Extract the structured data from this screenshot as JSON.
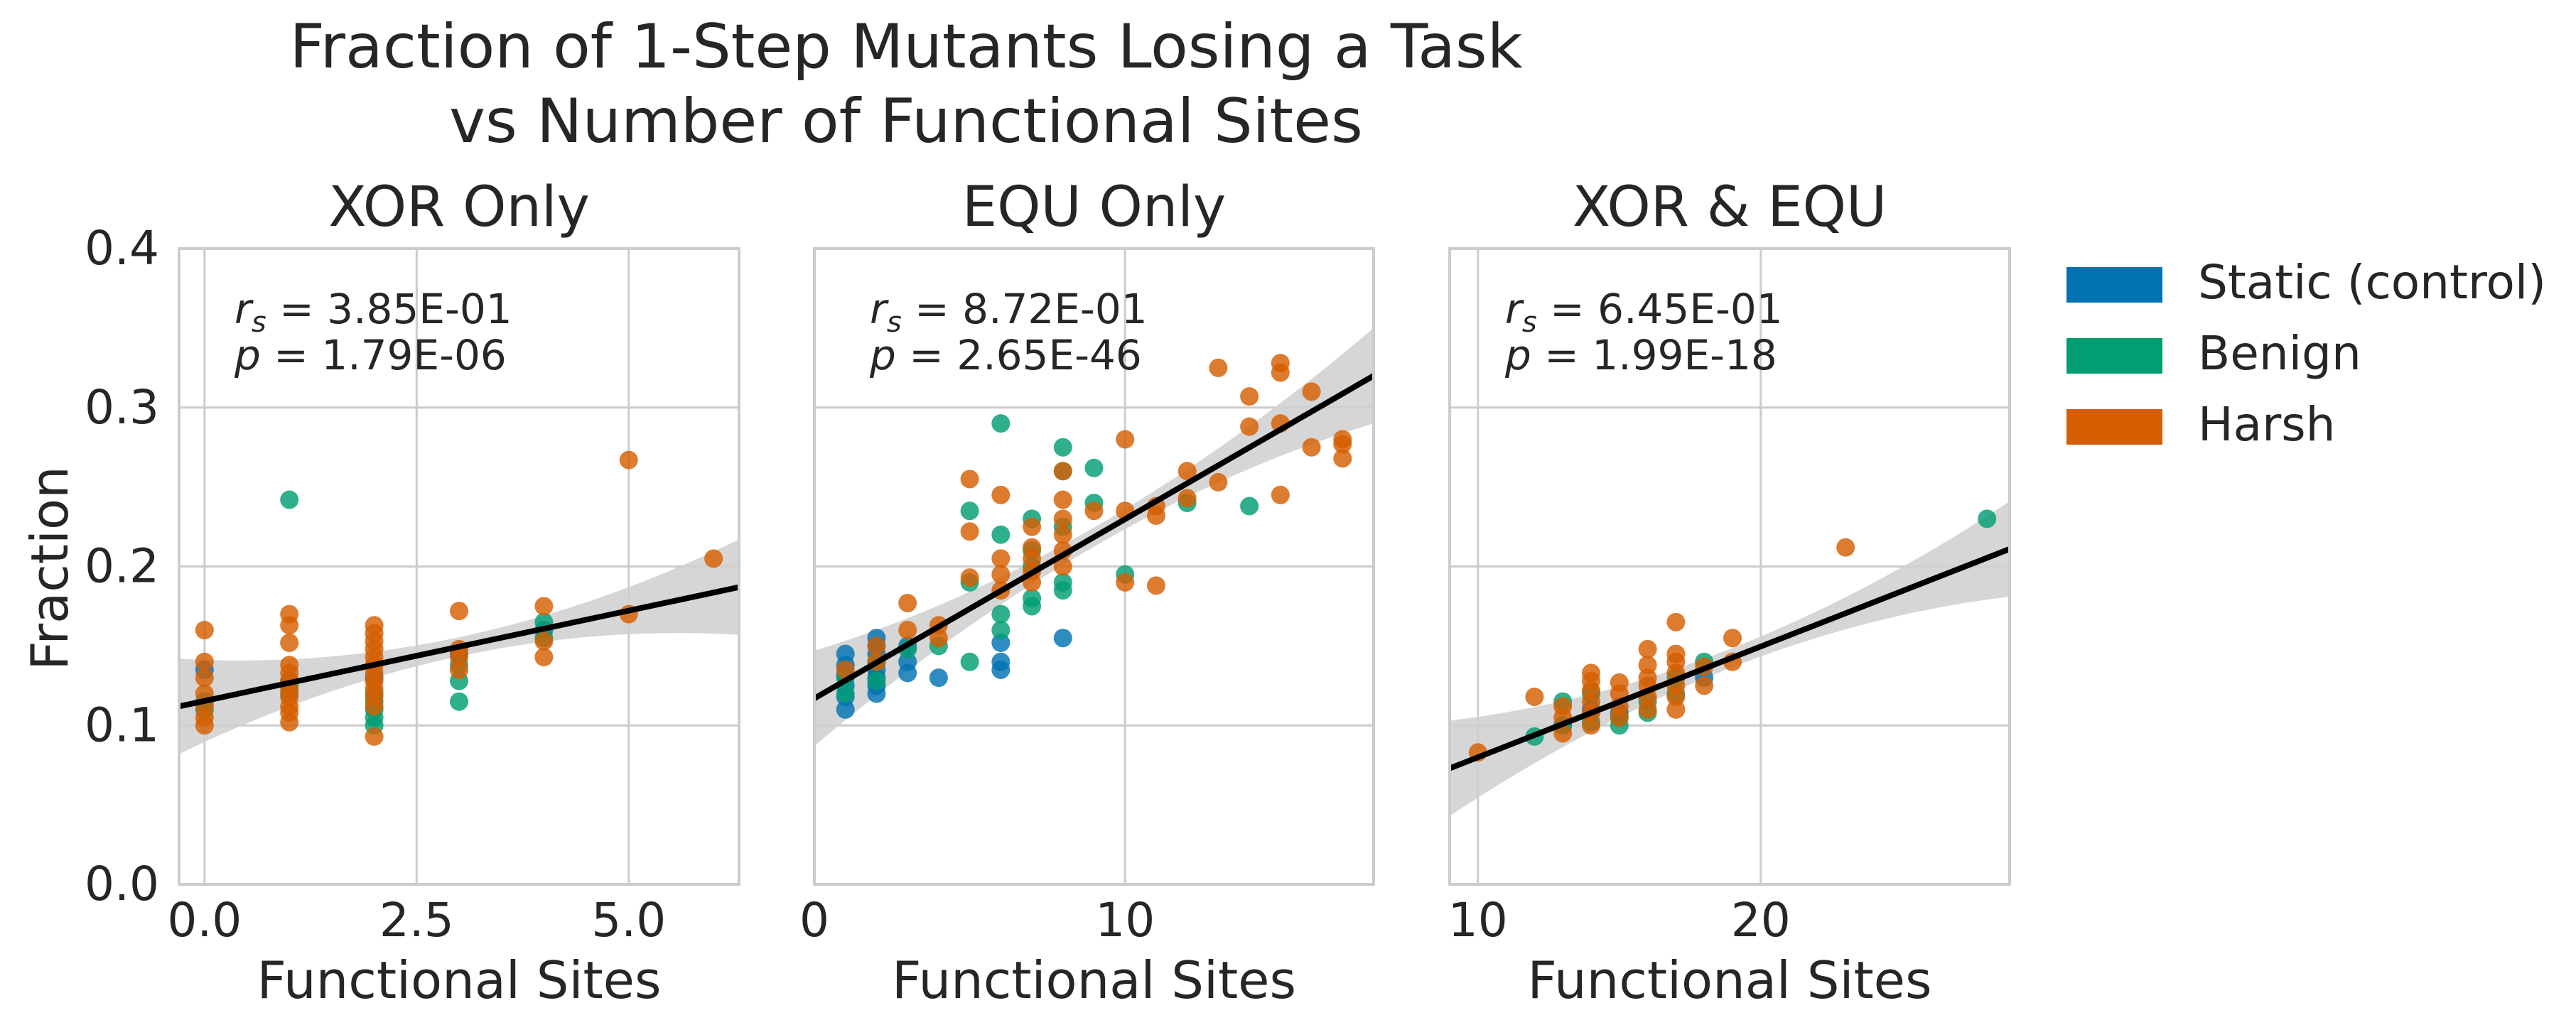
{
  "figure": {
    "title_line1": "Fraction of 1-Step Mutants Losing a Task",
    "title_line2": "vs Number of Functional Sites",
    "ylabel": "Fraction"
  },
  "legend": {
    "placement": "right, outside",
    "entries": [
      {
        "label": "Static (control)",
        "color": "#0173b2"
      },
      {
        "label": "Benign",
        "color": "#029e73"
      },
      {
        "label": "Harsh",
        "color": "#d55e00"
      }
    ]
  },
  "chart_data": [
    {
      "type": "scatter",
      "title": "XOR Only",
      "xlabel": "Functional Sites",
      "ylabel": "Fraction",
      "xlim": [
        -0.3,
        6.3
      ],
      "ylim": [
        0,
        0.4
      ],
      "xticks": [
        0.0,
        2.5,
        5.0
      ],
      "xtick_labels": [
        "0.0",
        "2.5",
        "5.0"
      ],
      "yticks": [
        0.0,
        0.1,
        0.2,
        0.3,
        0.4
      ],
      "ytick_labels": [
        "0.0",
        "0.1",
        "0.2",
        "0.3",
        "0.4"
      ],
      "grid": true,
      "stat_rs_label": "= 3.85E-01",
      "stat_p_label": "= 1.79E-06",
      "regression": {
        "x": [
          -0.3,
          6.3
        ],
        "y": [
          0.112,
          0.187
        ]
      },
      "series": [
        {
          "name": "Static (control)",
          "points": [
            [
              0,
              0.135
            ],
            [
              1,
              0.128
            ],
            [
              2,
              0.13
            ],
            [
              3,
              0.145
            ],
            [
              4,
              0.16
            ]
          ]
        },
        {
          "name": "Benign",
          "points": [
            [
              0,
              0.11
            ],
            [
              0,
              0.115
            ],
            [
              1,
              0.242
            ],
            [
              1,
              0.12
            ],
            [
              1,
              0.125
            ],
            [
              2,
              0.1
            ],
            [
              2,
              0.105
            ],
            [
              2,
              0.11
            ],
            [
              2,
              0.115
            ],
            [
              2,
              0.12
            ],
            [
              3,
              0.115
            ],
            [
              3,
              0.128
            ],
            [
              3,
              0.138
            ],
            [
              4,
              0.155
            ],
            [
              4,
              0.165
            ]
          ]
        },
        {
          "name": "Harsh",
          "points": [
            [
              0,
              0.1
            ],
            [
              0,
              0.105
            ],
            [
              0,
              0.112
            ],
            [
              0,
              0.12
            ],
            [
              0,
              0.13
            ],
            [
              0,
              0.14
            ],
            [
              0,
              0.16
            ],
            [
              1,
              0.102
            ],
            [
              1,
              0.108
            ],
            [
              1,
              0.112
            ],
            [
              1,
              0.118
            ],
            [
              1,
              0.122
            ],
            [
              1,
              0.128
            ],
            [
              1,
              0.133
            ],
            [
              1,
              0.138
            ],
            [
              1,
              0.152
            ],
            [
              1,
              0.163
            ],
            [
              1,
              0.17
            ],
            [
              2,
              0.093
            ],
            [
              2,
              0.112
            ],
            [
              2,
              0.118
            ],
            [
              2,
              0.123
            ],
            [
              2,
              0.128
            ],
            [
              2,
              0.133
            ],
            [
              2,
              0.138
            ],
            [
              2,
              0.143
            ],
            [
              2,
              0.148
            ],
            [
              2,
              0.153
            ],
            [
              2,
              0.158
            ],
            [
              2,
              0.163
            ],
            [
              3,
              0.135
            ],
            [
              3,
              0.143
            ],
            [
              3,
              0.148
            ],
            [
              3,
              0.172
            ],
            [
              4,
              0.143
            ],
            [
              4,
              0.153
            ],
            [
              4,
              0.175
            ],
            [
              5,
              0.17
            ],
            [
              5,
              0.267
            ],
            [
              6,
              0.205
            ]
          ]
        }
      ]
    },
    {
      "type": "scatter",
      "title": "EQU Only",
      "xlabel": "Functional Sites",
      "xlim": [
        0,
        18
      ],
      "ylim": [
        0,
        0.4
      ],
      "xticks": [
        0,
        10
      ],
      "xtick_labels": [
        "0",
        "10"
      ],
      "grid": true,
      "stat_rs_label": "= 8.72E-01",
      "stat_p_label": "= 2.65E-46",
      "regression": {
        "x": [
          0,
          18
        ],
        "y": [
          0.117,
          0.32
        ]
      },
      "series": [
        {
          "name": "Static (control)",
          "points": [
            [
              1,
              0.11
            ],
            [
              1,
              0.118
            ],
            [
              1,
              0.125
            ],
            [
              1,
              0.132
            ],
            [
              1,
              0.138
            ],
            [
              1,
              0.145
            ],
            [
              2,
              0.12
            ],
            [
              2,
              0.125
            ],
            [
              2,
              0.13
            ],
            [
              2,
              0.135
            ],
            [
              2,
              0.14
            ],
            [
              2,
              0.145
            ],
            [
              2,
              0.15
            ],
            [
              2,
              0.155
            ],
            [
              3,
              0.133
            ],
            [
              3,
              0.14
            ],
            [
              3,
              0.15
            ],
            [
              4,
              0.13
            ],
            [
              6,
              0.135
            ],
            [
              6,
              0.14
            ],
            [
              6,
              0.152
            ],
            [
              8,
              0.155
            ]
          ]
        },
        {
          "name": "Benign",
          "points": [
            [
              1,
              0.12
            ],
            [
              1,
              0.13
            ],
            [
              2,
              0.128
            ],
            [
              2,
              0.14
            ],
            [
              3,
              0.148
            ],
            [
              4,
              0.15
            ],
            [
              5,
              0.14
            ],
            [
              5,
              0.19
            ],
            [
              5,
              0.235
            ],
            [
              6,
              0.16
            ],
            [
              6,
              0.17
            ],
            [
              6,
              0.22
            ],
            [
              6,
              0.29
            ],
            [
              7,
              0.175
            ],
            [
              7,
              0.18
            ],
            [
              7,
              0.2
            ],
            [
              7,
              0.21
            ],
            [
              7,
              0.23
            ],
            [
              8,
              0.185
            ],
            [
              8,
              0.19
            ],
            [
              8,
              0.225
            ],
            [
              8,
              0.26
            ],
            [
              8,
              0.275
            ],
            [
              9,
              0.24
            ],
            [
              9,
              0.262
            ],
            [
              10,
              0.195
            ],
            [
              12,
              0.24
            ],
            [
              14,
              0.238
            ]
          ]
        },
        {
          "name": "Harsh",
          "points": [
            [
              1,
              0.135
            ],
            [
              2,
              0.14
            ],
            [
              2,
              0.15
            ],
            [
              3,
              0.16
            ],
            [
              3,
              0.177
            ],
            [
              4,
              0.155
            ],
            [
              4,
              0.163
            ],
            [
              5,
              0.193
            ],
            [
              5,
              0.222
            ],
            [
              5,
              0.255
            ],
            [
              6,
              0.185
            ],
            [
              6,
              0.195
            ],
            [
              6,
              0.205
            ],
            [
              6,
              0.245
            ],
            [
              7,
              0.19
            ],
            [
              7,
              0.197
            ],
            [
              7,
              0.205
            ],
            [
              7,
              0.212
            ],
            [
              7,
              0.225
            ],
            [
              8,
              0.2
            ],
            [
              8,
              0.21
            ],
            [
              8,
              0.22
            ],
            [
              8,
              0.23
            ],
            [
              8,
              0.242
            ],
            [
              8,
              0.26
            ],
            [
              9,
              0.235
            ],
            [
              10,
              0.19
            ],
            [
              10,
              0.235
            ],
            [
              10,
              0.28
            ],
            [
              11,
              0.188
            ],
            [
              11,
              0.232
            ],
            [
              11,
              0.238
            ],
            [
              12,
              0.243
            ],
            [
              12,
              0.26
            ],
            [
              13,
              0.253
            ],
            [
              13,
              0.325
            ],
            [
              14,
              0.288
            ],
            [
              14,
              0.307
            ],
            [
              15,
              0.245
            ],
            [
              15,
              0.29
            ],
            [
              15,
              0.322
            ],
            [
              15,
              0.328
            ],
            [
              16,
              0.275
            ],
            [
              16,
              0.31
            ],
            [
              17,
              0.268
            ],
            [
              17,
              0.277
            ],
            [
              17,
              0.28
            ]
          ]
        }
      ]
    },
    {
      "type": "scatter",
      "title": "XOR & EQU",
      "xlabel": "Functional Sites",
      "xlim": [
        9,
        28.8
      ],
      "ylim": [
        0,
        0.4
      ],
      "xticks": [
        10,
        20
      ],
      "xtick_labels": [
        "10",
        "20"
      ],
      "grid": true,
      "stat_rs_label": "= 6.45E-01",
      "stat_p_label": "= 1.99E-18",
      "regression": {
        "x": [
          9,
          28.8
        ],
        "y": [
          0.073,
          0.211
        ]
      },
      "series": [
        {
          "name": "Static (control)",
          "points": [
            [
              13,
              0.1
            ],
            [
              14,
              0.11
            ],
            [
              15,
              0.108
            ],
            [
              18,
              0.13
            ]
          ]
        },
        {
          "name": "Benign",
          "points": [
            [
              12,
              0.093
            ],
            [
              13,
              0.1
            ],
            [
              13,
              0.115
            ],
            [
              14,
              0.102
            ],
            [
              14,
              0.12
            ],
            [
              15,
              0.1
            ],
            [
              15,
              0.105
            ],
            [
              16,
              0.108
            ],
            [
              16,
              0.115
            ],
            [
              17,
              0.12
            ],
            [
              17,
              0.13
            ],
            [
              18,
              0.14
            ],
            [
              28,
              0.23
            ]
          ]
        },
        {
          "name": "Harsh",
          "points": [
            [
              10,
              0.083
            ],
            [
              12,
              0.118
            ],
            [
              13,
              0.095
            ],
            [
              13,
              0.105
            ],
            [
              13,
              0.112
            ],
            [
              14,
              0.1
            ],
            [
              14,
              0.108
            ],
            [
              14,
              0.115
            ],
            [
              14,
              0.122
            ],
            [
              14,
              0.128
            ],
            [
              14,
              0.133
            ],
            [
              15,
              0.105
            ],
            [
              15,
              0.112
            ],
            [
              15,
              0.12
            ],
            [
              15,
              0.127
            ],
            [
              16,
              0.11
            ],
            [
              16,
              0.118
            ],
            [
              16,
              0.125
            ],
            [
              16,
              0.13
            ],
            [
              16,
              0.138
            ],
            [
              16,
              0.148
            ],
            [
              17,
              0.11
            ],
            [
              17,
              0.118
            ],
            [
              17,
              0.125
            ],
            [
              17,
              0.133
            ],
            [
              17,
              0.14
            ],
            [
              17,
              0.145
            ],
            [
              17,
              0.165
            ],
            [
              18,
              0.125
            ],
            [
              18,
              0.137
            ],
            [
              19,
              0.14
            ],
            [
              19,
              0.155
            ],
            [
              23,
              0.212
            ]
          ]
        }
      ]
    }
  ]
}
